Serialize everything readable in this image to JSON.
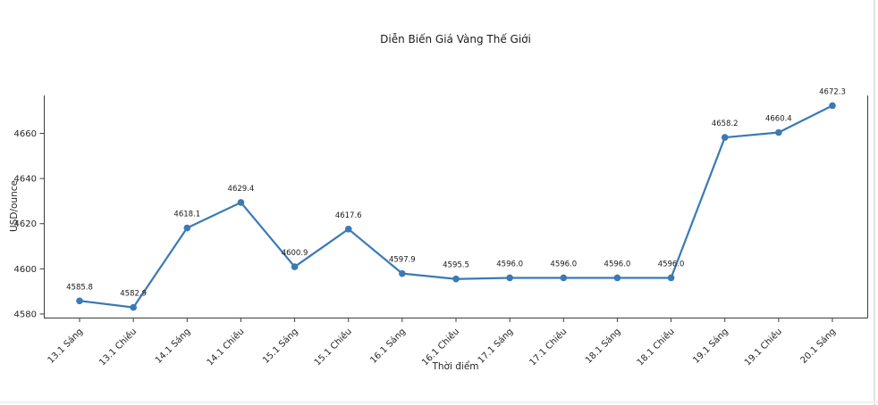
{
  "figure": {
    "background": "#ffffff",
    "edge_color": "#e2e2e2"
  },
  "chart_data": {
    "type": "line",
    "title": "Diễn Biến Giá Vàng Thế Giới",
    "xlabel": "Thời điểm",
    "ylabel": "USD/ounce",
    "categories": [
      "13.1 Sáng",
      "13.1 Chiều",
      "14.1 Sáng",
      "14.1 Chiều",
      "15.1 Sáng",
      "15.1 Chiều",
      "16.1 Sáng",
      "16.1 Chiều",
      "17.1 Sáng",
      "17.1 Chiều",
      "18.1 Sáng",
      "18.1 Chiều",
      "19.1 Sáng",
      "19.1 Chiều",
      "20.1 Sáng"
    ],
    "values": [
      4585.8,
      4582.9,
      4618.1,
      4629.4,
      4600.9,
      4617.6,
      4597.9,
      4595.5,
      4596.0,
      4596.0,
      4596.0,
      4596.0,
      4658.2,
      4660.4,
      4672.3
    ],
    "point_labels": [
      "4585.8",
      "4582.9",
      "4618.1",
      "4629.4",
      "4600.9",
      "4617.6",
      "4597.9",
      "4595.5",
      "4596.0",
      "4596.0",
      "4596.0",
      "4596.0",
      "4658.2",
      "4660.4",
      "4672.3"
    ],
    "yticks": [
      4580,
      4600,
      4620,
      4640,
      4660
    ],
    "ylim": [
      4578.4,
      4676.8
    ],
    "grid": false,
    "legend_position": "none",
    "x_tick_rotation": 45,
    "line_color": "#3b7ab5",
    "marker": "circle",
    "axis_color": "#3d3d3d",
    "text_color": "#262626"
  }
}
